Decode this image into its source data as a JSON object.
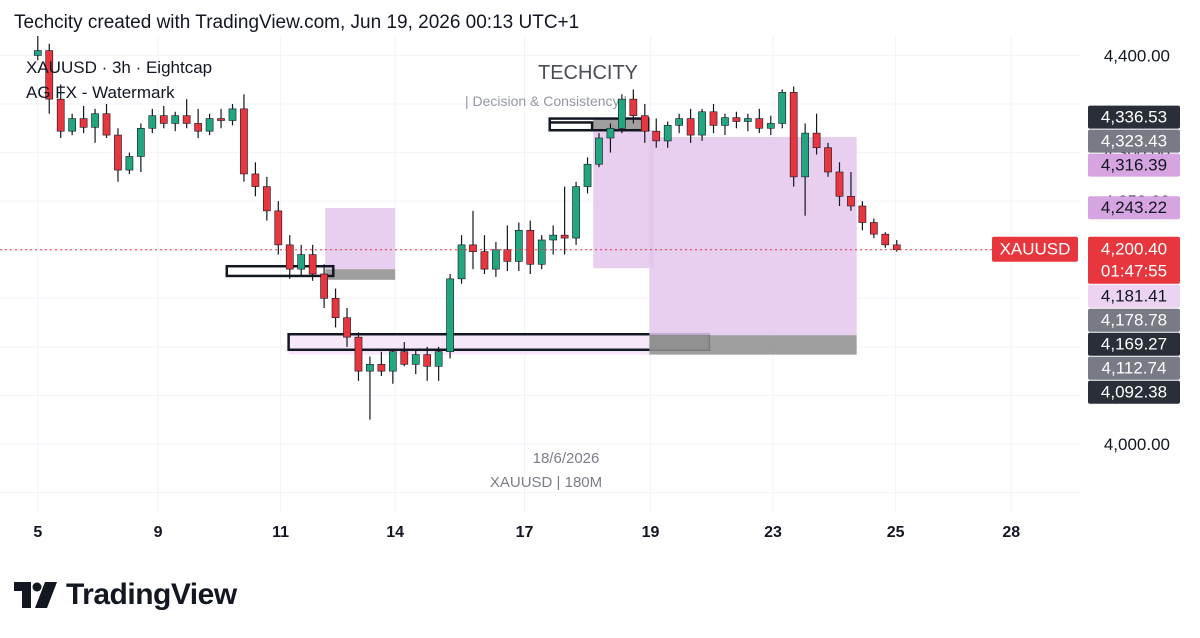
{
  "header": {
    "text": "Techcity created with TradingView.com, Jun 19, 2026 00:13 UTC+1"
  },
  "legend": {
    "line1": "XAUUSD · 3h · Eightcap",
    "line2": "AG FX - Watermark"
  },
  "watermark": {
    "title": "TECHCITY",
    "subtitle": "| Decision & Consistency |"
  },
  "bottom_watermark": {
    "date": "18/6/2026",
    "symbol": "XAUUSD | 180M"
  },
  "footer": {
    "brand": "TradingView",
    "logo_icon": "tradingview-logo-icon"
  },
  "colors": {
    "up": "#22a680",
    "down": "#e8363e",
    "purple_zone": "#e4c6ec",
    "gray_zone": "#8e8e8e",
    "price_line": "#e8363e"
  },
  "chart_data": {
    "type": "candlestick",
    "symbol": "XAUUSD",
    "timeframe": "3h",
    "ylim": [
      3930,
      4420
    ],
    "y_ticks": [
      {
        "value": 4400,
        "label": "4,400.00"
      },
      {
        "value": 4300,
        "label": "4,300.00"
      },
      {
        "value": 4250,
        "label": "4,250.00"
      },
      {
        "value": 4050,
        "label": "4,050.00"
      },
      {
        "value": 4000,
        "label": "4,000.00"
      }
    ],
    "x_ticks": [
      {
        "label": "5",
        "index": 0
      },
      {
        "label": "9",
        "index": 10.5
      },
      {
        "label": "11",
        "index": 21.2
      },
      {
        "label": "14",
        "index": 31.2
      },
      {
        "label": "17",
        "index": 42.5
      },
      {
        "label": "19",
        "index": 53.5
      },
      {
        "label": "23",
        "index": 64.2
      },
      {
        "label": "25",
        "index": 74.9
      },
      {
        "label": "28",
        "index": 85
      }
    ],
    "x_index_range": [
      -3.3,
      91
    ],
    "current_price": {
      "symbol": "XAUUSD",
      "value": "4,200.40",
      "countdown": "01:47:55"
    },
    "price_tags": [
      {
        "value": 4336.53,
        "label": "4,336.53",
        "style": "dark"
      },
      {
        "value": 4323.43,
        "label": "4,323.43",
        "style": "gray"
      },
      {
        "value": 4316.39,
        "label": "4,316.39",
        "style": "purple"
      },
      {
        "value": 4243.22,
        "label": "4,243.22",
        "style": "purple"
      },
      {
        "value": 4181.41,
        "label": "4,181.41",
        "style": "lightpurple"
      },
      {
        "value": 4178.78,
        "label": "4,178.78",
        "style": "gray"
      },
      {
        "value": 4169.27,
        "label": "4,169.27",
        "style": "dark"
      },
      {
        "value": 4112.74,
        "label": "4,112.74",
        "style": "gray"
      },
      {
        "value": 4092.38,
        "label": "4,092.38",
        "style": "dark"
      }
    ],
    "zones": [
      {
        "kind": "purple",
        "x0": 25.1,
        "x1": 31.2,
        "top": 4243,
        "bottom": 4180
      },
      {
        "kind": "gray",
        "x0": 25.1,
        "x1": 31.2,
        "top": 4180,
        "bottom": 4169
      },
      {
        "kind": "box",
        "x0": 16.5,
        "x1": 25.8,
        "top": 4183,
        "bottom": 4173
      },
      {
        "kind": "lightpurple",
        "x0": 21.9,
        "x1": 53.4,
        "top": 4112,
        "bottom": 4092
      },
      {
        "kind": "box",
        "x0": 21.9,
        "x1": 58.6,
        "top": 4113,
        "bottom": 4097
      },
      {
        "kind": "gray",
        "x0": 53.4,
        "x1": 58.6,
        "top": 4112,
        "bottom": 4097
      },
      {
        "kind": "purple",
        "x0": 53.4,
        "x1": 71.5,
        "top": 4316,
        "bottom": 4112
      },
      {
        "kind": "gray",
        "x0": 53.4,
        "x1": 71.5,
        "top": 4112,
        "bottom": 4092
      },
      {
        "kind": "purple",
        "x0": 48.5,
        "x1": 53.8,
        "top": 4323,
        "bottom": 4181
      },
      {
        "kind": "gray",
        "x0": 48.5,
        "x1": 53.3,
        "top": 4336,
        "bottom": 4323
      },
      {
        "kind": "box",
        "x0": 44.7,
        "x1": 53.3,
        "top": 4335,
        "bottom": 4323
      },
      {
        "kind": "box",
        "x0": 44.7,
        "x1": 48.4,
        "top": 4331,
        "bottom": 4323
      }
    ],
    "candles": [
      {
        "o": 4400,
        "h": 4420,
        "l": 4395,
        "c": 4405
      },
      {
        "o": 4405,
        "h": 4412,
        "l": 4340,
        "c": 4355
      },
      {
        "o": 4355,
        "h": 4370,
        "l": 4315,
        "c": 4322
      },
      {
        "o": 4322,
        "h": 4340,
        "l": 4318,
        "c": 4335
      },
      {
        "o": 4335,
        "h": 4348,
        "l": 4320,
        "c": 4326
      },
      {
        "o": 4326,
        "h": 4345,
        "l": 4310,
        "c": 4340
      },
      {
        "o": 4340,
        "h": 4350,
        "l": 4315,
        "c": 4318
      },
      {
        "o": 4318,
        "h": 4325,
        "l": 4270,
        "c": 4282
      },
      {
        "o": 4282,
        "h": 4300,
        "l": 4278,
        "c": 4296
      },
      {
        "o": 4296,
        "h": 4330,
        "l": 4280,
        "c": 4325
      },
      {
        "o": 4325,
        "h": 4345,
        "l": 4320,
        "c": 4338
      },
      {
        "o": 4338,
        "h": 4348,
        "l": 4325,
        "c": 4330
      },
      {
        "o": 4330,
        "h": 4342,
        "l": 4322,
        "c": 4338
      },
      {
        "o": 4338,
        "h": 4355,
        "l": 4325,
        "c": 4330
      },
      {
        "o": 4330,
        "h": 4345,
        "l": 4315,
        "c": 4322
      },
      {
        "o": 4322,
        "h": 4340,
        "l": 4318,
        "c": 4335
      },
      {
        "o": 4335,
        "h": 4345,
        "l": 4325,
        "c": 4333
      },
      {
        "o": 4333,
        "h": 4350,
        "l": 4328,
        "c": 4345
      },
      {
        "o": 4345,
        "h": 4360,
        "l": 4270,
        "c": 4278
      },
      {
        "o": 4278,
        "h": 4290,
        "l": 4255,
        "c": 4265
      },
      {
        "o": 4265,
        "h": 4275,
        "l": 4230,
        "c": 4240
      },
      {
        "o": 4240,
        "h": 4250,
        "l": 4195,
        "c": 4205
      },
      {
        "o": 4205,
        "h": 4215,
        "l": 4170,
        "c": 4180
      },
      {
        "o": 4180,
        "h": 4205,
        "l": 4172,
        "c": 4195
      },
      {
        "o": 4195,
        "h": 4205,
        "l": 4168,
        "c": 4175
      },
      {
        "o": 4175,
        "h": 4185,
        "l": 4140,
        "c": 4150
      },
      {
        "o": 4150,
        "h": 4160,
        "l": 4120,
        "c": 4130
      },
      {
        "o": 4130,
        "h": 4140,
        "l": 4100,
        "c": 4110
      },
      {
        "o": 4110,
        "h": 4115,
        "l": 4065,
        "c": 4075
      },
      {
        "o": 4075,
        "h": 4090,
        "l": 4025,
        "c": 4082
      },
      {
        "o": 4082,
        "h": 4095,
        "l": 4070,
        "c": 4075
      },
      {
        "o": 4075,
        "h": 4098,
        "l": 4062,
        "c": 4095
      },
      {
        "o": 4095,
        "h": 4105,
        "l": 4080,
        "c": 4082
      },
      {
        "o": 4082,
        "h": 4098,
        "l": 4072,
        "c": 4092
      },
      {
        "o": 4092,
        "h": 4100,
        "l": 4065,
        "c": 4080
      },
      {
        "o": 4080,
        "h": 4100,
        "l": 4065,
        "c": 4095
      },
      {
        "o": 4095,
        "h": 4175,
        "l": 4088,
        "c": 4170
      },
      {
        "o": 4170,
        "h": 4215,
        "l": 4165,
        "c": 4205
      },
      {
        "o": 4205,
        "h": 4240,
        "l": 4180,
        "c": 4198
      },
      {
        "o": 4198,
        "h": 4215,
        "l": 4175,
        "c": 4180
      },
      {
        "o": 4180,
        "h": 4208,
        "l": 4172,
        "c": 4200
      },
      {
        "o": 4200,
        "h": 4225,
        "l": 4178,
        "c": 4188
      },
      {
        "o": 4188,
        "h": 4228,
        "l": 4178,
        "c": 4220
      },
      {
        "o": 4220,
        "h": 4230,
        "l": 4175,
        "c": 4185
      },
      {
        "o": 4185,
        "h": 4215,
        "l": 4180,
        "c": 4210
      },
      {
        "o": 4210,
        "h": 4225,
        "l": 4195,
        "c": 4215
      },
      {
        "o": 4215,
        "h": 4265,
        "l": 4195,
        "c": 4212
      },
      {
        "o": 4212,
        "h": 4270,
        "l": 4205,
        "c": 4265
      },
      {
        "o": 4265,
        "h": 4295,
        "l": 4258,
        "c": 4288
      },
      {
        "o": 4288,
        "h": 4320,
        "l": 4285,
        "c": 4315
      },
      {
        "o": 4315,
        "h": 4330,
        "l": 4300,
        "c": 4325
      },
      {
        "o": 4325,
        "h": 4360,
        "l": 4320,
        "c": 4355
      },
      {
        "o": 4355,
        "h": 4365,
        "l": 4330,
        "c": 4338
      },
      {
        "o": 4338,
        "h": 4350,
        "l": 4310,
        "c": 4322
      },
      {
        "o": 4322,
        "h": 4335,
        "l": 4305,
        "c": 4312
      },
      {
        "o": 4312,
        "h": 4332,
        "l": 4305,
        "c": 4328
      },
      {
        "o": 4328,
        "h": 4340,
        "l": 4320,
        "c": 4335
      },
      {
        "o": 4335,
        "h": 4345,
        "l": 4310,
        "c": 4318
      },
      {
        "o": 4318,
        "h": 4345,
        "l": 4312,
        "c": 4342
      },
      {
        "o": 4342,
        "h": 4350,
        "l": 4320,
        "c": 4328
      },
      {
        "o": 4328,
        "h": 4340,
        "l": 4318,
        "c": 4336
      },
      {
        "o": 4336,
        "h": 4342,
        "l": 4325,
        "c": 4332
      },
      {
        "o": 4332,
        "h": 4340,
        "l": 4322,
        "c": 4335
      },
      {
        "o": 4335,
        "h": 4345,
        "l": 4320,
        "c": 4325
      },
      {
        "o": 4325,
        "h": 4338,
        "l": 4318,
        "c": 4330
      },
      {
        "o": 4330,
        "h": 4365,
        "l": 4325,
        "c": 4362
      },
      {
        "o": 4362,
        "h": 4368,
        "l": 4265,
        "c": 4275
      },
      {
        "o": 4275,
        "h": 4330,
        "l": 4235,
        "c": 4320
      },
      {
        "o": 4320,
        "h": 4340,
        "l": 4298,
        "c": 4305
      },
      {
        "o": 4305,
        "h": 4310,
        "l": 4275,
        "c": 4280
      },
      {
        "o": 4280,
        "h": 4290,
        "l": 4245,
        "c": 4255
      },
      {
        "o": 4255,
        "h": 4280,
        "l": 4240,
        "c": 4245
      },
      {
        "o": 4245,
        "h": 4250,
        "l": 4220,
        "c": 4228
      },
      {
        "o": 4228,
        "h": 4232,
        "l": 4212,
        "c": 4216
      },
      {
        "o": 4216,
        "h": 4218,
        "l": 4202,
        "c": 4205
      },
      {
        "o": 4205,
        "h": 4210,
        "l": 4198,
        "c": 4200
      }
    ]
  }
}
